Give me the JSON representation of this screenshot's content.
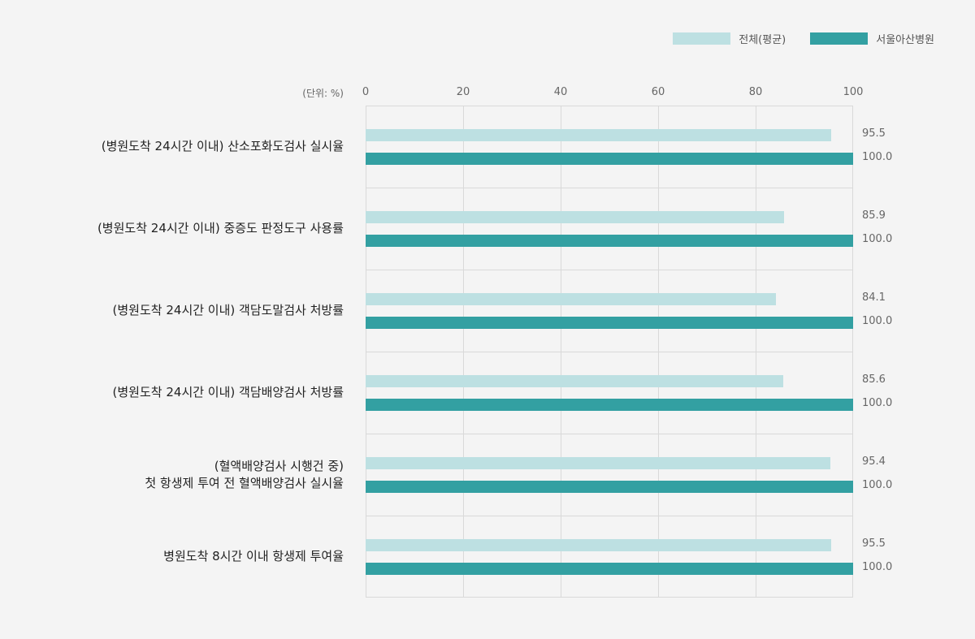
{
  "legend": [
    {
      "label": "전체(평균)",
      "color": "#bde0e2"
    },
    {
      "label": "서울아산병원",
      "color": "#33a0a2"
    }
  ],
  "unit_label": "(단위: %)",
  "chart_data": {
    "type": "bar",
    "orientation": "horizontal",
    "xlim": [
      0,
      100
    ],
    "xticks": [
      0,
      20,
      40,
      60,
      80,
      100
    ],
    "grid": true,
    "legend_position": "top-right",
    "categories": [
      [
        "(병원도착 24시간 이내) 산소포화도검사 실시율"
      ],
      [
        "(병원도착 24시간 이내) 중증도 판정도구 사용률"
      ],
      [
        "(병원도착 24시간 이내) 객담도말검사 처방률"
      ],
      [
        "(병원도착 24시간 이내) 객담배양검사 처방률"
      ],
      [
        "(혈액배양검사 시행건 중)",
        "첫 항생제 투여 전 혈액배양검사 실시율"
      ],
      [
        "병원도착 8시간 이내 항생제 투여율"
      ]
    ],
    "series": [
      {
        "name": "전체(평균)",
        "color": "#bde0e2",
        "values": [
          95.5,
          85.9,
          84.1,
          85.6,
          95.4,
          95.5
        ],
        "labels": [
          "95.5",
          "85.9",
          "84.1",
          "85.6",
          "95.4",
          "95.5"
        ]
      },
      {
        "name": "서울아산병원",
        "color": "#33a0a2",
        "values": [
          100.0,
          100.0,
          100.0,
          100.0,
          100.0,
          100.0
        ],
        "labels": [
          "100.0",
          "100.0",
          "100.0",
          "100.0",
          "100.0",
          "100.0"
        ]
      }
    ]
  }
}
